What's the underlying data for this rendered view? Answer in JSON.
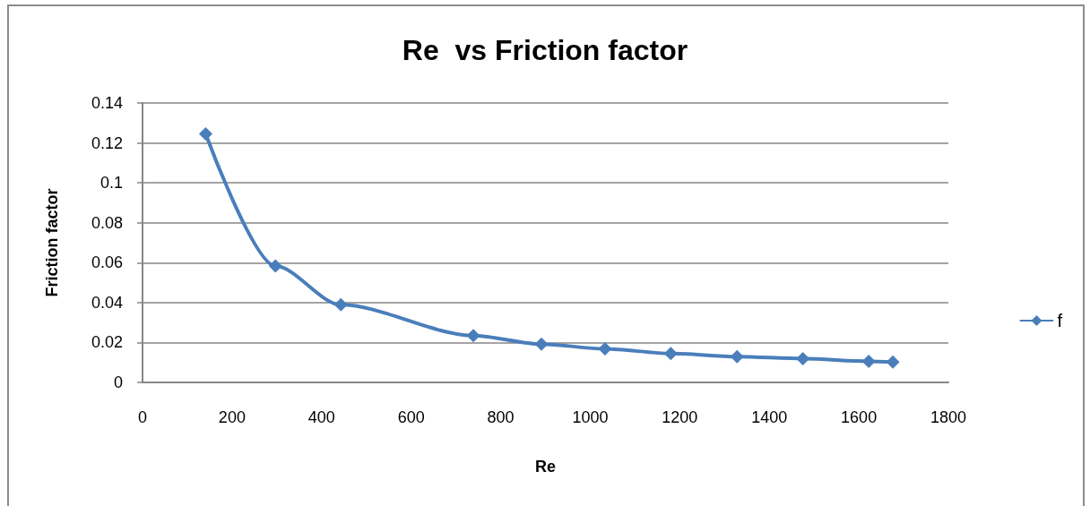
{
  "chart_data": {
    "type": "line",
    "title": "Re  vs Friction factor",
    "xlabel": "Re",
    "ylabel": "Friction factor",
    "x": [
      141,
      297,
      443,
      739,
      891,
      1033,
      1180,
      1328,
      1475,
      1622,
      1676
    ],
    "series": [
      {
        "name": "f",
        "color": "#4a7ebb",
        "values": [
          0.1245,
          0.0583,
          0.0389,
          0.0235,
          0.0192,
          0.0168,
          0.0145,
          0.0129,
          0.0119,
          0.0106,
          0.0102
        ]
      }
    ],
    "xlim": [
      0,
      1800
    ],
    "xticks": [
      0,
      200,
      400,
      600,
      800,
      1000,
      1200,
      1400,
      1600,
      1800
    ],
    "ylim": [
      0,
      0.14
    ],
    "yticks": [
      0,
      0.02,
      0.04,
      0.06,
      0.08,
      0.1,
      0.12,
      0.14
    ],
    "grid": "y",
    "legend": "right",
    "marker": "diamond",
    "line_style": "solid"
  }
}
